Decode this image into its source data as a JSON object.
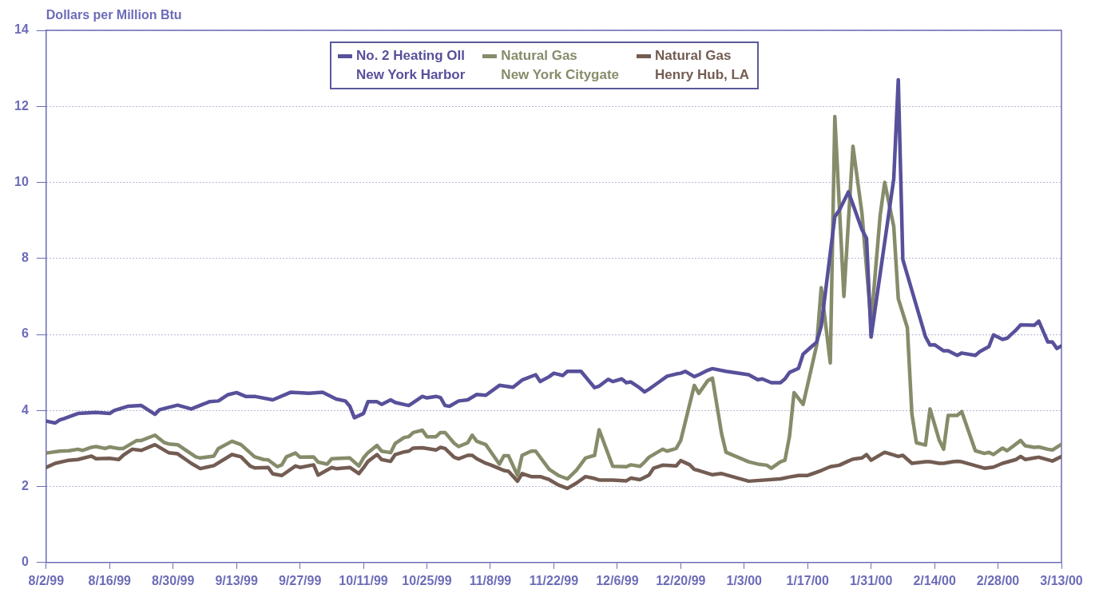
{
  "chart_data": {
    "type": "line",
    "ylabel": "Dollars per Million Btu",
    "xlim": [
      "1999-08-02",
      "2000-03-13"
    ],
    "xticks": [
      {
        "value": "1999-08-02",
        "label": "8/2/99"
      },
      {
        "value": "1999-08-16",
        "label": "8/16/99"
      },
      {
        "value": "1999-08-30",
        "label": "8/30/99"
      },
      {
        "value": "1999-09-13",
        "label": "9/13/99"
      },
      {
        "value": "1999-09-27",
        "label": "9/27/99"
      },
      {
        "value": "1999-10-11",
        "label": "10/11/99"
      },
      {
        "value": "1999-10-25",
        "label": "10/25/99"
      },
      {
        "value": "1999-11-08",
        "label": "11/8/99"
      },
      {
        "value": "1999-11-22",
        "label": "11/22/99"
      },
      {
        "value": "1999-12-06",
        "label": "12/6/99"
      },
      {
        "value": "1999-12-20",
        "label": "12/20/99"
      },
      {
        "value": "2000-01-03",
        "label": "1/3/00"
      },
      {
        "value": "2000-01-17",
        "label": "1/17/00"
      },
      {
        "value": "2000-01-31",
        "label": "1/31/00"
      },
      {
        "value": "2000-02-14",
        "label": "2/14/00"
      },
      {
        "value": "2000-02-28",
        "label": "2/28/00"
      },
      {
        "value": "2000-03-13",
        "label": "3/13/00"
      }
    ],
    "ylim": [
      0,
      14
    ],
    "yticks": [
      0,
      2,
      4,
      6,
      8,
      10,
      12,
      14
    ],
    "grid": "y",
    "legend": "top",
    "marker": "none",
    "line_style": "solid",
    "series": [
      {
        "name": "No. 2 Heating OIl\nNew York Harbor",
        "color": "#57509a",
        "x": [
          "1999-08-02",
          "1999-08-04",
          "1999-08-05",
          "1999-08-06",
          "1999-08-09",
          "1999-08-13",
          "1999-08-16",
          "1999-08-17",
          "1999-08-20",
          "1999-08-23",
          "1999-08-26",
          "1999-08-27",
          "1999-08-31",
          "1999-09-03",
          "1999-09-07",
          "1999-09-09",
          "1999-09-11",
          "1999-09-13",
          "1999-09-15",
          "1999-09-17",
          "1999-09-21",
          "1999-09-25",
          "1999-09-29",
          "1999-10-02",
          "1999-10-05",
          "1999-10-07",
          "1999-10-08",
          "1999-10-09",
          "1999-10-11",
          "1999-10-12",
          "1999-10-14",
          "1999-10-15",
          "1999-10-17",
          "1999-10-18",
          "1999-10-21",
          "1999-10-22",
          "1999-10-24",
          "1999-10-25",
          "1999-10-27",
          "1999-10-28",
          "1999-10-29",
          "1999-10-30",
          "1999-11-01",
          "1999-11-03",
          "1999-11-05",
          "1999-11-07",
          "1999-11-10",
          "1999-11-13",
          "1999-11-15",
          "1999-11-18",
          "1999-11-19",
          "1999-11-21",
          "1999-11-22",
          "1999-11-24",
          "1999-11-25",
          "1999-11-28",
          "1999-12-01",
          "1999-12-02",
          "1999-12-04",
          "1999-12-05",
          "1999-12-07",
          "1999-12-08",
          "1999-12-09",
          "1999-12-11",
          "1999-12-12",
          "1999-12-13",
          "1999-12-15",
          "1999-12-17",
          "1999-12-19",
          "1999-12-20",
          "1999-12-21",
          "1999-12-23",
          "1999-12-24",
          "1999-12-26",
          "1999-12-27",
          "1999-12-30",
          "2000-01-04",
          "2000-01-06",
          "2000-01-07",
          "2000-01-09",
          "2000-01-11",
          "2000-01-12",
          "2000-01-13",
          "2000-01-15",
          "2000-01-16",
          "2000-01-19",
          "2000-01-20",
          "2000-01-23",
          "2000-01-24",
          "2000-01-26",
          "2000-01-27",
          "2000-01-29",
          "2000-01-30",
          "2000-01-31",
          "2000-02-05",
          "2000-02-06",
          "2000-02-07",
          "2000-02-12",
          "2000-02-13",
          "2000-02-14",
          "2000-02-16",
          "2000-02-17",
          "2000-02-19",
          "2000-02-20",
          "2000-02-23",
          "2000-02-24",
          "2000-02-26",
          "2000-02-27",
          "2000-02-29",
          "2000-03-01",
          "2000-03-03",
          "2000-03-04",
          "2000-03-07",
          "2000-03-08",
          "2000-03-10",
          "2000-03-11",
          "2000-03-12",
          "2000-03-13"
        ],
        "values": [
          3.72,
          3.67,
          3.75,
          3.79,
          3.92,
          3.95,
          3.92,
          4.0,
          4.11,
          4.13,
          3.9,
          4.02,
          4.14,
          4.04,
          4.23,
          4.25,
          4.41,
          4.47,
          4.37,
          4.37,
          4.28,
          4.48,
          4.45,
          4.48,
          4.3,
          4.25,
          4.11,
          3.81,
          3.92,
          4.23,
          4.23,
          4.16,
          4.28,
          4.21,
          4.13,
          4.21,
          4.37,
          4.33,
          4.37,
          4.34,
          4.13,
          4.11,
          4.25,
          4.28,
          4.42,
          4.4,
          4.66,
          4.61,
          4.8,
          4.94,
          4.76,
          4.89,
          4.98,
          4.92,
          5.03,
          5.03,
          4.6,
          4.64,
          4.82,
          4.76,
          4.83,
          4.73,
          4.75,
          4.59,
          4.49,
          4.56,
          4.73,
          4.9,
          4.96,
          4.98,
          5.03,
          4.89,
          4.94,
          5.06,
          5.1,
          5.03,
          4.94,
          4.81,
          4.83,
          4.73,
          4.73,
          4.83,
          5.0,
          5.11,
          5.48,
          5.8,
          6.22,
          9.1,
          9.27,
          9.75,
          9.42,
          8.75,
          8.53,
          5.93,
          10.09,
          12.7,
          7.97,
          5.94,
          5.72,
          5.73,
          5.57,
          5.57,
          5.45,
          5.51,
          5.45,
          5.55,
          5.68,
          5.99,
          5.87,
          5.9,
          6.12,
          6.25,
          6.24,
          6.35,
          5.8,
          5.8,
          5.63,
          5.7
        ]
      },
      {
        "name": "Natural Gas\nNew York Citygate",
        "color": "#868c6a",
        "x": [
          "1999-08-02",
          "1999-08-05",
          "1999-08-07",
          "1999-08-09",
          "1999-08-10",
          "1999-08-12",
          "1999-08-13",
          "1999-08-15",
          "1999-08-16",
          "1999-08-18",
          "1999-08-19",
          "1999-08-22",
          "1999-08-23",
          "1999-08-26",
          "1999-08-28",
          "1999-08-29",
          "1999-08-31",
          "1999-09-04",
          "1999-09-05",
          "1999-09-08",
          "1999-09-09",
          "1999-09-12",
          "1999-09-14",
          "1999-09-17",
          "1999-09-19",
          "1999-09-20",
          "1999-09-22",
          "1999-09-23",
          "1999-09-24",
          "1999-09-26",
          "1999-09-27",
          "1999-09-30",
          "1999-10-01",
          "1999-10-03",
          "1999-10-04",
          "1999-10-08",
          "1999-10-10",
          "1999-10-11",
          "1999-10-12",
          "1999-10-14",
          "1999-10-15",
          "1999-10-17",
          "1999-10-18",
          "1999-10-20",
          "1999-10-21",
          "1999-10-22",
          "1999-10-24",
          "1999-10-25",
          "1999-10-27",
          "1999-10-28",
          "1999-10-29",
          "1999-10-31",
          "1999-11-01",
          "1999-11-03",
          "1999-11-04",
          "1999-11-05",
          "1999-11-07",
          "1999-11-08",
          "1999-11-10",
          "1999-11-11",
          "1999-11-12",
          "1999-11-14",
          "1999-11-15",
          "1999-11-17",
          "1999-11-18",
          "1999-11-21",
          "1999-11-23",
          "1999-11-25",
          "1999-11-27",
          "1999-11-29",
          "1999-12-01",
          "1999-12-02",
          "1999-12-05",
          "1999-12-08",
          "1999-12-09",
          "1999-12-11",
          "1999-12-12",
          "1999-12-13",
          "1999-12-16",
          "1999-12-17",
          "1999-12-19",
          "1999-12-20",
          "1999-12-23",
          "1999-12-24",
          "1999-12-26",
          "1999-12-27",
          "1999-12-29",
          "1999-12-30",
          "2000-01-04",
          "2000-01-06",
          "2000-01-08",
          "2000-01-09",
          "2000-01-11",
          "2000-01-12",
          "2000-01-13",
          "2000-01-14",
          "2000-01-16",
          "2000-01-19",
          "2000-01-20",
          "2000-01-22",
          "2000-01-23",
          "2000-01-25",
          "2000-01-27",
          "2000-01-29",
          "2000-01-30",
          "2000-01-31",
          "2000-02-02",
          "2000-02-03",
          "2000-02-05",
          "2000-02-06",
          "2000-02-08",
          "2000-02-09",
          "2000-02-10",
          "2000-02-12",
          "2000-02-13",
          "2000-02-15",
          "2000-02-16",
          "2000-02-17",
          "2000-02-19",
          "2000-02-20",
          "2000-02-23",
          "2000-02-25",
          "2000-02-26",
          "2000-02-27",
          "2000-02-29",
          "2000-03-01",
          "2000-03-04",
          "2000-03-05",
          "2000-03-07",
          "2000-03-08",
          "2000-03-10",
          "2000-03-11",
          "2000-03-13"
        ],
        "values": [
          2.88,
          2.93,
          2.94,
          2.98,
          2.95,
          3.03,
          3.05,
          3.0,
          3.04,
          3.0,
          3.0,
          3.21,
          3.21,
          3.35,
          3.16,
          3.12,
          3.1,
          2.78,
          2.75,
          2.8,
          3.0,
          3.19,
          3.1,
          2.78,
          2.71,
          2.7,
          2.52,
          2.57,
          2.78,
          2.88,
          2.77,
          2.78,
          2.64,
          2.59,
          2.73,
          2.75,
          2.54,
          2.75,
          2.89,
          3.08,
          2.93,
          2.89,
          3.13,
          3.29,
          3.31,
          3.42,
          3.48,
          3.31,
          3.31,
          3.42,
          3.42,
          3.14,
          3.05,
          3.15,
          3.35,
          3.19,
          3.1,
          2.93,
          2.59,
          2.81,
          2.81,
          2.29,
          2.82,
          2.93,
          2.93,
          2.45,
          2.29,
          2.2,
          2.43,
          2.75,
          2.82,
          3.49,
          2.53,
          2.52,
          2.57,
          2.53,
          2.64,
          2.77,
          2.98,
          2.93,
          3.0,
          3.21,
          4.66,
          4.45,
          4.79,
          4.85,
          3.4,
          2.9,
          2.65,
          2.59,
          2.56,
          2.48,
          2.65,
          2.69,
          3.32,
          4.47,
          4.16,
          5.72,
          7.23,
          5.25,
          11.73,
          7.0,
          10.95,
          9.17,
          7.74,
          6.3,
          9.13,
          10.0,
          8.84,
          6.94,
          6.18,
          3.91,
          3.15,
          3.09,
          4.04,
          3.23,
          2.98,
          3.87,
          3.87,
          3.97,
          2.94,
          2.87,
          2.9,
          2.84,
          3.01,
          2.94,
          3.21,
          3.07,
          3.03,
          3.04,
          2.98,
          2.96,
          3.11
        ]
      },
      {
        "name": "Natural Gas\nHenry Hub, LA",
        "color": "#735c52",
        "x": [
          "1999-08-02",
          "1999-08-04",
          "1999-08-07",
          "1999-08-09",
          "1999-08-12",
          "1999-08-13",
          "1999-08-16",
          "1999-08-18",
          "1999-08-19",
          "1999-08-21",
          "1999-08-23",
          "1999-08-26",
          "1999-08-29",
          "1999-08-31",
          "1999-09-03",
          "1999-09-05",
          "1999-09-08",
          "1999-09-12",
          "1999-09-14",
          "1999-09-16",
          "1999-09-17",
          "1999-09-20",
          "1999-09-21",
          "1999-09-23",
          "1999-09-26",
          "1999-09-27",
          "1999-09-30",
          "1999-10-01",
          "1999-10-04",
          "1999-10-05",
          "1999-10-08",
          "1999-10-10",
          "1999-10-11",
          "1999-10-12",
          "1999-10-14",
          "1999-10-15",
          "1999-10-17",
          "1999-10-18",
          "1999-10-20",
          "1999-10-21",
          "1999-10-22",
          "1999-10-24",
          "1999-10-27",
          "1999-10-28",
          "1999-10-29",
          "1999-10-31",
          "1999-11-01",
          "1999-11-03",
          "1999-11-04",
          "1999-11-05",
          "1999-11-07",
          "1999-11-08",
          "1999-11-10",
          "1999-11-11",
          "1999-11-12",
          "1999-11-14",
          "1999-11-15",
          "1999-11-17",
          "1999-11-19",
          "1999-11-21",
          "1999-11-23",
          "1999-11-25",
          "1999-11-27",
          "1999-11-29",
          "1999-12-01",
          "1999-12-02",
          "1999-12-05",
          "1999-12-08",
          "1999-12-09",
          "1999-12-11",
          "1999-12-13",
          "1999-12-14",
          "1999-12-16",
          "1999-12-19",
          "1999-12-20",
          "1999-12-22",
          "1999-12-23",
          "1999-12-24",
          "1999-12-27",
          "1999-12-29",
          "2000-01-04",
          "2000-01-11",
          "2000-01-13",
          "2000-01-15",
          "2000-01-17",
          "2000-01-20",
          "2000-01-22",
          "2000-01-24",
          "2000-01-26",
          "2000-01-27",
          "2000-01-29",
          "2000-01-30",
          "2000-01-31",
          "2000-02-03",
          "2000-02-06",
          "2000-02-07",
          "2000-02-09",
          "2000-02-12",
          "2000-02-13",
          "2000-02-15",
          "2000-02-16",
          "2000-02-18",
          "2000-02-19",
          "2000-02-20",
          "2000-02-25",
          "2000-02-27",
          "2000-02-29",
          "2000-03-03",
          "2000-03-04",
          "2000-03-05",
          "2000-03-07",
          "2000-03-08",
          "2000-03-11",
          "2000-03-13"
        ],
        "values": [
          2.5,
          2.61,
          2.69,
          2.71,
          2.8,
          2.73,
          2.74,
          2.71,
          2.82,
          2.98,
          2.95,
          3.1,
          2.89,
          2.86,
          2.61,
          2.47,
          2.55,
          2.84,
          2.78,
          2.54,
          2.49,
          2.5,
          2.33,
          2.29,
          2.54,
          2.5,
          2.57,
          2.3,
          2.5,
          2.47,
          2.5,
          2.34,
          2.49,
          2.66,
          2.84,
          2.71,
          2.66,
          2.84,
          2.91,
          2.93,
          3.01,
          3.02,
          2.96,
          3.03,
          3.0,
          2.77,
          2.73,
          2.82,
          2.82,
          2.73,
          2.61,
          2.57,
          2.47,
          2.42,
          2.4,
          2.14,
          2.34,
          2.26,
          2.26,
          2.18,
          2.04,
          1.95,
          2.09,
          2.26,
          2.21,
          2.17,
          2.17,
          2.15,
          2.22,
          2.18,
          2.3,
          2.48,
          2.56,
          2.54,
          2.68,
          2.57,
          2.45,
          2.42,
          2.31,
          2.34,
          2.14,
          2.2,
          2.25,
          2.29,
          2.29,
          2.42,
          2.52,
          2.56,
          2.67,
          2.72,
          2.75,
          2.84,
          2.69,
          2.9,
          2.79,
          2.82,
          2.61,
          2.65,
          2.65,
          2.61,
          2.61,
          2.65,
          2.66,
          2.65,
          2.48,
          2.51,
          2.61,
          2.71,
          2.79,
          2.71,
          2.75,
          2.77,
          2.67,
          2.79
        ]
      }
    ]
  }
}
